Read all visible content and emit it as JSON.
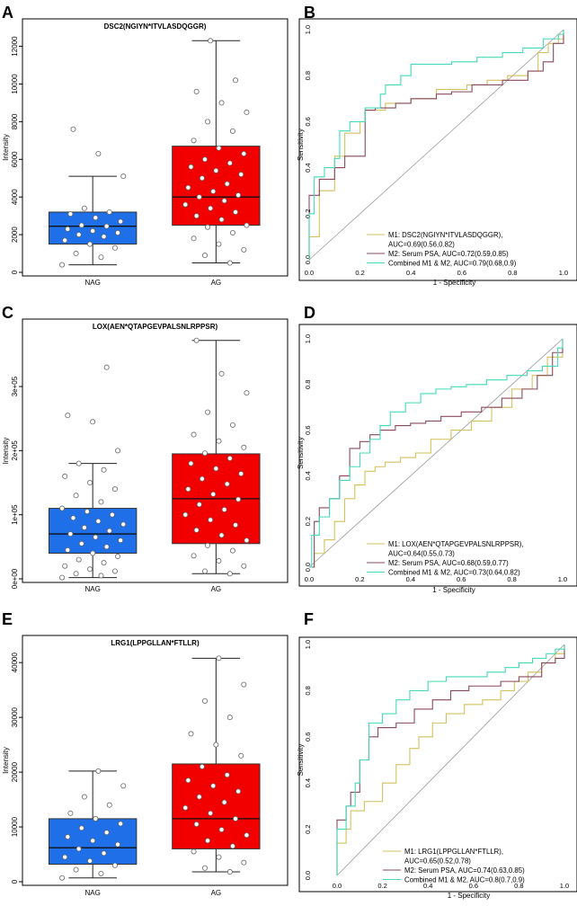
{
  "figure_colors": {
    "nag_box": "#1f6fe8",
    "ag_box": "#f20000",
    "m1_line": "#d4c25e",
    "m2_line": "#8a4a5e",
    "combined_line": "#45d9b9",
    "diagonal": "#999999"
  },
  "chart_data": [
    {
      "type": "box",
      "panel": "A",
      "title": "DSC2(NGIYN*ITVLASDQGGR)",
      "ylabel": "Intensity",
      "categories": [
        "NAG",
        "AG"
      ],
      "ylim": [
        0,
        12600
      ],
      "yticks": [
        0,
        2000,
        4000,
        6000,
        8000,
        10000,
        12000
      ],
      "ytick_labels": [
        "0",
        "2000",
        "4000",
        "6000",
        "8000",
        "10000",
        "12000"
      ],
      "boxes": [
        {
          "name": "NAG",
          "whisker_low": 400,
          "q1": 1500,
          "median": 2450,
          "q3": 3200,
          "whisker_high": 5100,
          "points": [
            400,
            800,
            1000,
            1300,
            1500,
            1700,
            1900,
            2000,
            2100,
            2200,
            2300,
            2450,
            2500,
            2700,
            2900,
            3100,
            3200,
            3400,
            5100,
            6300,
            7600
          ]
        },
        {
          "name": "AG",
          "whisker_low": 500,
          "q1": 2500,
          "median": 4000,
          "q3": 6700,
          "whisker_high": 12300,
          "points": [
            500,
            900,
            1200,
            1500,
            1800,
            2100,
            2400,
            2500,
            2800,
            3000,
            3200,
            3400,
            3600,
            3800,
            4000,
            4100,
            4300,
            4500,
            4700,
            5000,
            5200,
            5400,
            5600,
            5800,
            6000,
            6300,
            6600,
            7000,
            7500,
            8000,
            8500,
            9000,
            9600,
            10200,
            12300
          ]
        }
      ]
    },
    {
      "type": "roc",
      "panel": "B",
      "xlabel": "1 - Specificity",
      "ylabel": "Sensitivity",
      "ticks": [
        "0.0",
        "0.2",
        "0.4",
        "0.6",
        "0.8",
        "1.0"
      ],
      "series": [
        {
          "name": "M1: DSC2(NGIYN*ITVLASDQGGR), AUC=0.69(0.56,0.82)",
          "legend_lines": [
            "M1: DSC2(NGIYN*ITVLASDQGGR),",
            "AUC=0.69(0.56,0.82)"
          ],
          "color_key": "m1_line",
          "x": [
            0,
            0,
            0.04,
            0.04,
            0.1,
            0.1,
            0.14,
            0.2,
            0.22,
            0.3,
            0.4,
            0.5,
            0.62,
            0.7,
            0.78,
            0.86,
            0.9,
            0.94,
            0.98,
            1
          ],
          "y": [
            0,
            0.1,
            0.18,
            0.3,
            0.38,
            0.45,
            0.55,
            0.6,
            0.65,
            0.68,
            0.7,
            0.74,
            0.76,
            0.78,
            0.8,
            0.82,
            0.9,
            0.94,
            0.96,
            1
          ]
        },
        {
          "name": "M2: Serum PSA, AUC=0.72(0.59,0.85)",
          "legend_lines": [
            "M2: Serum PSA, AUC=0.72(0.59,0.85)"
          ],
          "color_key": "m2_line",
          "x": [
            0,
            0,
            0.04,
            0.1,
            0.14,
            0.22,
            0.26,
            0.34,
            0.4,
            0.5,
            0.56,
            0.64,
            0.7,
            0.76,
            0.86,
            0.92,
            0.96,
            1
          ],
          "y": [
            0,
            0.28,
            0.35,
            0.4,
            0.45,
            0.65,
            0.66,
            0.68,
            0.7,
            0.72,
            0.73,
            0.76,
            0.76,
            0.78,
            0.82,
            0.86,
            0.94,
            1
          ]
        },
        {
          "name": "Combined M1 & M2, AUC=0.79(0.68,0.9)",
          "legend_lines": [
            "Combined M1 & M2, AUC=0.79(0.68,0.9)"
          ],
          "color_key": "combined_line",
          "x": [
            0,
            0,
            0.02,
            0.06,
            0.1,
            0.12,
            0.16,
            0.22,
            0.28,
            0.3,
            0.36,
            0.4,
            0.46,
            0.56,
            0.66,
            0.76,
            0.84,
            0.92,
            0.98,
            1
          ],
          "y": [
            0,
            0.2,
            0.36,
            0.4,
            0.44,
            0.56,
            0.6,
            0.66,
            0.72,
            0.76,
            0.8,
            0.85,
            0.85,
            0.86,
            0.88,
            0.9,
            0.92,
            0.96,
            0.98,
            1
          ]
        }
      ]
    },
    {
      "type": "box",
      "panel": "C",
      "title": "LOX(AEN*QTAPGEVPALSNLRPPSR)",
      "ylabel": "Intensity",
      "categories": [
        "NAG",
        "AG"
      ],
      "ylim": [
        0,
        380000
      ],
      "yticks": [
        0,
        100000,
        200000,
        300000
      ],
      "ytick_labels": [
        "0e+00",
        "1e+05",
        "2e+05",
        "3e+05"
      ],
      "boxes": [
        {
          "name": "NAG",
          "whisker_low": 2000,
          "q1": 40000,
          "median": 70000,
          "q3": 110000,
          "whisker_high": 180000,
          "points": [
            2000,
            5000,
            8000,
            12000,
            15000,
            20000,
            25000,
            30000,
            35000,
            40000,
            45000,
            50000,
            55000,
            60000,
            65000,
            70000,
            75000,
            80000,
            85000,
            90000,
            95000,
            100000,
            105000,
            110000,
            120000,
            130000,
            140000,
            150000,
            160000,
            170000,
            180000,
            200000,
            245000,
            255000,
            330000
          ]
        },
        {
          "name": "AG",
          "whisker_low": 8000,
          "q1": 55000,
          "median": 125000,
          "q3": 195000,
          "whisker_high": 372000,
          "points": [
            8000,
            12000,
            20000,
            28000,
            36000,
            44000,
            52000,
            60000,
            68000,
            76000,
            84000,
            92000,
            100000,
            108000,
            116000,
            124000,
            132000,
            140000,
            148000,
            156000,
            164000,
            172000,
            180000,
            188000,
            196000,
            205000,
            215000,
            225000,
            240000,
            260000,
            290000,
            320000,
            372000
          ]
        }
      ]
    },
    {
      "type": "roc",
      "panel": "D",
      "xlabel": "1 - Specificity",
      "ylabel": "Sensitivity",
      "ticks": [
        "0.0",
        "0.2",
        "0.4",
        "0.6",
        "0.8",
        "1.0"
      ],
      "series": [
        {
          "name": "M1: LOX(AEN*QTAPGEVPALSNLRPPSR), AUC=0.64(0.55,0.73)",
          "legend_lines": [
            "M1: LOX(AEN*QTAPGEVPALSNLRPPSR),",
            "AUC=0.64(0.55,0.73)"
          ],
          "color_key": "m1_line",
          "x": [
            0,
            0.02,
            0.06,
            0.1,
            0.14,
            0.18,
            0.22,
            0.26,
            0.3,
            0.36,
            0.42,
            0.48,
            0.56,
            0.64,
            0.72,
            0.8,
            0.88,
            0.94,
            1
          ],
          "y": [
            0,
            0.06,
            0.12,
            0.2,
            0.3,
            0.36,
            0.42,
            0.44,
            0.46,
            0.48,
            0.5,
            0.56,
            0.6,
            0.64,
            0.7,
            0.78,
            0.84,
            0.92,
            1
          ]
        },
        {
          "name": "M2: Serum PSA, AUC=0.68(0.59,0.77)",
          "legend_lines": [
            "M2: Serum PSA, AUC=0.68(0.59,0.77)"
          ],
          "color_key": "m2_line",
          "x": [
            0,
            0.02,
            0.04,
            0.08,
            0.12,
            0.16,
            0.2,
            0.24,
            0.28,
            0.34,
            0.4,
            0.46,
            0.52,
            0.6,
            0.68,
            0.76,
            0.84,
            0.9,
            0.96,
            1
          ],
          "y": [
            0,
            0.2,
            0.26,
            0.3,
            0.4,
            0.52,
            0.55,
            0.58,
            0.6,
            0.62,
            0.63,
            0.64,
            0.66,
            0.68,
            0.7,
            0.74,
            0.78,
            0.84,
            0.94,
            1
          ]
        },
        {
          "name": "Combined M1 & M2, AUC=0.73(0.64,0.82)",
          "legend_lines": [
            "Combined M1 & M2, AUC=0.73(0.64,0.82)"
          ],
          "color_key": "combined_line",
          "x": [
            0,
            0.01,
            0.04,
            0.08,
            0.12,
            0.16,
            0.2,
            0.24,
            0.28,
            0.32,
            0.38,
            0.44,
            0.5,
            0.56,
            0.62,
            0.7,
            0.78,
            0.86,
            0.92,
            0.98,
            1
          ],
          "y": [
            0,
            0.14,
            0.22,
            0.3,
            0.38,
            0.44,
            0.5,
            0.56,
            0.62,
            0.68,
            0.72,
            0.76,
            0.78,
            0.79,
            0.8,
            0.82,
            0.84,
            0.86,
            0.88,
            0.96,
            1
          ]
        }
      ]
    },
    {
      "type": "box",
      "panel": "E",
      "title": "LRG1(LPPGLLAN*FTLLR)",
      "ylabel": "Intensity",
      "categories": [
        "NAG",
        "AG"
      ],
      "ylim": [
        0,
        42000
      ],
      "yticks": [
        0,
        10000,
        20000,
        30000,
        40000
      ],
      "ytick_labels": [
        "0",
        "10000",
        "20000",
        "30000",
        "40000"
      ],
      "boxes": [
        {
          "name": "NAG",
          "whisker_low": 700,
          "q1": 3200,
          "median": 6200,
          "q3": 11500,
          "whisker_high": 20200,
          "points": [
            700,
            1500,
            2200,
            3000,
            3800,
            4500,
            5200,
            6000,
            6800,
            7500,
            8200,
            9000,
            9800,
            10600,
            11500,
            12500,
            14000,
            15500,
            17500,
            20200
          ]
        },
        {
          "name": "AG",
          "whisker_low": 1800,
          "q1": 6000,
          "median": 11500,
          "q3": 21500,
          "whisker_high": 40800,
          "points": [
            1800,
            2500,
            3500,
            4500,
            5500,
            6500,
            7500,
            8500,
            9500,
            10500,
            11500,
            12500,
            13500,
            14500,
            15500,
            16500,
            17500,
            18500,
            19500,
            21000,
            23000,
            25000,
            27000,
            30000,
            33000,
            36000,
            40800
          ]
        }
      ]
    },
    {
      "type": "roc",
      "panel": "F",
      "xlabel": "1 - Specificity",
      "ylabel": "Sensitivity",
      "ticks": [
        "0.0",
        "0.2",
        "0.4",
        "0.6",
        "0.8",
        "1.0"
      ],
      "series": [
        {
          "name": "M1: LRG1(LPPGLLAN*FTLLR), AUC=0.65(0.52,0.78)",
          "legend_lines": [
            "M1: LRG1(LPPGLLAN*FTLLR),",
            "AUC=0.65(0.52,0.78)"
          ],
          "color_key": "m1_line",
          "x": [
            0,
            0,
            0.04,
            0.06,
            0.12,
            0.2,
            0.26,
            0.32,
            0.36,
            0.42,
            0.48,
            0.56,
            0.64,
            0.72,
            0.78,
            0.84,
            0.9,
            0.96,
            1
          ],
          "y": [
            0,
            0.14,
            0.2,
            0.28,
            0.32,
            0.4,
            0.48,
            0.55,
            0.6,
            0.66,
            0.7,
            0.74,
            0.76,
            0.8,
            0.84,
            0.88,
            0.92,
            0.96,
            1
          ]
        },
        {
          "name": "M2: Serum PSA, AUC=0.74(0.63,0.85)",
          "legend_lines": [
            "M2: Serum PSA, AUC=0.74(0.63,0.85)"
          ],
          "color_key": "m2_line",
          "x": [
            0,
            0,
            0.04,
            0.06,
            0.1,
            0.14,
            0.18,
            0.26,
            0.34,
            0.42,
            0.5,
            0.58,
            0.66,
            0.72,
            0.8,
            0.86,
            0.9,
            0.96,
            1
          ],
          "y": [
            0,
            0.24,
            0.3,
            0.36,
            0.5,
            0.6,
            0.64,
            0.66,
            0.72,
            0.76,
            0.8,
            0.82,
            0.82,
            0.84,
            0.86,
            0.86,
            0.92,
            0.94,
            1
          ]
        },
        {
          "name": "Combined M1 & M2, AUC=0.8(0.7,0.9)",
          "legend_lines": [
            "Combined M1 & M2, AUC=0.8(0.7,0.9)"
          ],
          "color_key": "combined_line",
          "x": [
            0,
            0,
            0.04,
            0.08,
            0.1,
            0.14,
            0.2,
            0.26,
            0.32,
            0.4,
            0.48,
            0.58,
            0.66,
            0.74,
            0.8,
            0.86,
            0.92,
            0.96,
            1
          ],
          "y": [
            0,
            0.2,
            0.3,
            0.4,
            0.5,
            0.66,
            0.7,
            0.76,
            0.8,
            0.84,
            0.86,
            0.86,
            0.88,
            0.9,
            0.92,
            0.94,
            0.96,
            0.98,
            1
          ]
        }
      ]
    }
  ]
}
